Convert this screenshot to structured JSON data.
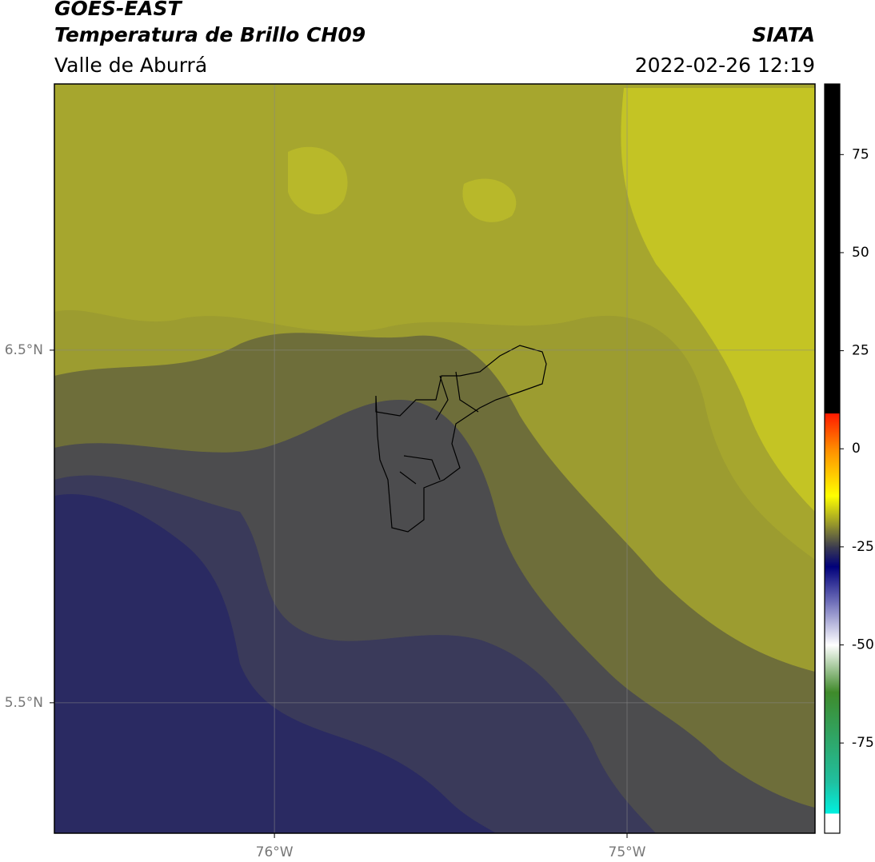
{
  "chart_data": {
    "type": "map",
    "title": "GOES-EAST",
    "subtitle": "Temperatura de Brillo CH09",
    "region": "Valle de Aburrá",
    "source": "SIATA",
    "datetime": "2022-02-26 12:19",
    "xlim": [
      -76.624,
      -74.467
    ],
    "ylim": [
      5.13,
      7.255
    ],
    "xticks": [
      {
        "value": -76,
        "label": "76°W"
      },
      {
        "value": -75,
        "label": "75°W"
      }
    ],
    "yticks": [
      {
        "value": 6.5,
        "label": "6.5°N"
      },
      {
        "value": 5.5,
        "label": "5.5°N"
      }
    ],
    "grid": true,
    "colorbar": {
      "lim": [
        -98,
        93
      ],
      "ticks": [
        75,
        50,
        25,
        0,
        -25,
        -50,
        -75
      ],
      "stops": [
        [
          93,
          "#000000"
        ],
        [
          9,
          "#000000"
        ],
        [
          9,
          "#ff1a00"
        ],
        [
          0,
          "#ff8c00"
        ],
        [
          -12,
          "#ffff00"
        ],
        [
          -20,
          "#8a8a30"
        ],
        [
          -25,
          "#3c3c50"
        ],
        [
          -30,
          "#00007a"
        ],
        [
          -40,
          "#7c7cc0"
        ],
        [
          -50,
          "#ffffff"
        ],
        [
          -62,
          "#3f8a2a"
        ],
        [
          -85,
          "#20c0a0"
        ],
        [
          -93,
          "#00f0e0"
        ],
        [
          -93,
          "#ffffff"
        ],
        [
          -98,
          "#ffffff"
        ]
      ]
    }
  }
}
